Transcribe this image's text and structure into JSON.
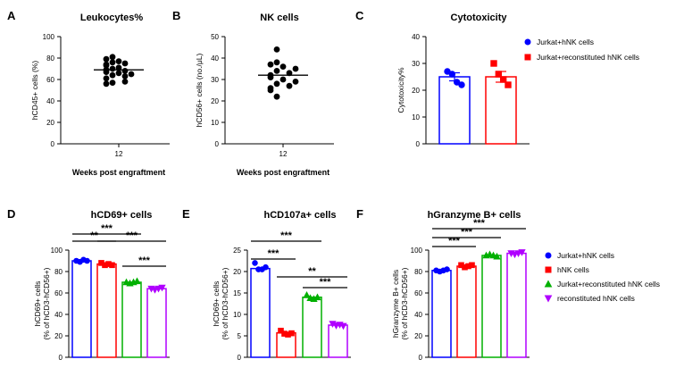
{
  "panels": [
    {
      "id": "A",
      "label": "A",
      "title": "Leukocytes%",
      "ylabel": "hCD45+ cells (%)",
      "xlabel": "Weeks post engraftment",
      "xtick": "12",
      "yticks": [
        0,
        20,
        40,
        60,
        80,
        100
      ],
      "ylim": [
        0,
        100
      ],
      "mean": 69
    },
    {
      "id": "B",
      "label": "B",
      "title": "NK cells",
      "ylabel": "hCD56+ cells (no./μL)",
      "xlabel": "Weeks post engraftment",
      "xtick": "12",
      "yticks": [
        0,
        10,
        20,
        30,
        40,
        50
      ],
      "ylim": [
        0,
        50
      ],
      "mean": 32
    },
    {
      "id": "C",
      "label": "C",
      "title": "Cytotoxicity",
      "ylabel": "Cytotoxicity%",
      "yticks": [
        0,
        10,
        20,
        30,
        40
      ],
      "ylim": [
        0,
        40
      ]
    },
    {
      "id": "D",
      "label": "D",
      "title": "hCD69+ cells",
      "ylabel": "hCD69+ cells",
      "ylabel2": "(% of hCD3-hCD56+)",
      "yticks": [
        0,
        20,
        40,
        60,
        80,
        100
      ],
      "ylim": [
        0,
        100
      ]
    },
    {
      "id": "E",
      "label": "E",
      "title": "hCD107a+ cells",
      "ylabel": "hCD69+ cells",
      "ylabel2": "(% of hCD3-hCD56+)",
      "yticks": [
        0,
        5,
        10,
        15,
        20,
        25
      ],
      "ylim": [
        0,
        25
      ]
    },
    {
      "id": "F",
      "label": "F",
      "title": "hGranzyme B+ cells",
      "ylabel": "hGranzyme B+ cells",
      "ylabel2": "(% of hCD3-hCD56+)",
      "yticks": [
        0,
        20,
        40,
        60,
        80,
        100
      ],
      "ylim": [
        0,
        100
      ]
    }
  ],
  "legend_C": [
    {
      "name": "Jurkat+hNK cells",
      "color": "#0000ff",
      "marker": "circle"
    },
    {
      "name": "Jurkat+reconstituted hNK cells",
      "color": "#ff0000",
      "marker": "square"
    }
  ],
  "legend_F": [
    {
      "name": "Jurkat+hNK cells",
      "color": "#0000ff",
      "marker": "circle"
    },
    {
      "name": "hNK cells",
      "color": "#ff0000",
      "marker": "square"
    },
    {
      "name": "Jurkat+reconstituted hNK cells",
      "color": "#00b000",
      "marker": "triangle"
    },
    {
      "name": "reconstituted hNK cells",
      "color": "#b000ff",
      "marker": "invtriangle"
    }
  ],
  "chart_data": [
    {
      "type": "scatter",
      "panel": "A",
      "title": "Leukocytes%",
      "xlabel": "Weeks post engraftment",
      "ylabel": "hCD45+ cells (%)",
      "categories": [
        "12"
      ],
      "ylim": [
        0,
        100
      ],
      "points": [
        79,
        81,
        76,
        77,
        73,
        75,
        71,
        74,
        70,
        67,
        68,
        69,
        66,
        64,
        65,
        63,
        57,
        58,
        56,
        61
      ],
      "mean": 69
    },
    {
      "type": "scatter",
      "panel": "B",
      "title": "NK cells",
      "xlabel": "Weeks post engraftment",
      "ylabel": "hCD56+ cells (no./μL)",
      "categories": [
        "12"
      ],
      "ylim": [
        0,
        50
      ],
      "points": [
        44,
        38,
        37,
        36,
        35,
        34,
        33,
        32,
        31,
        30,
        29,
        28,
        27,
        26,
        25,
        22
      ],
      "mean": 32
    },
    {
      "type": "bar",
      "panel": "C",
      "title": "Cytotoxicity",
      "ylabel": "Cytotoxicity%",
      "ylim": [
        0,
        40
      ],
      "series": [
        {
          "name": "Jurkat+hNK cells",
          "color": "#0000ff",
          "value": 25,
          "sem": 1.5,
          "points": [
            27,
            26,
            23,
            22
          ]
        },
        {
          "name": "Jurkat+reconstituted hNK cells",
          "color": "#ff0000",
          "value": 25,
          "sem": 2,
          "points": [
            30,
            26,
            24,
            22
          ]
        }
      ]
    },
    {
      "type": "bar",
      "panel": "D",
      "title": "hCD69+ cells",
      "ylabel": "hCD69+ cells (% of hCD3-hCD56+)",
      "ylim": [
        0,
        100
      ],
      "series": [
        {
          "name": "Jurkat+hNK cells",
          "color": "#0000ff",
          "value": 90,
          "points": [
            90,
            89,
            91,
            90
          ]
        },
        {
          "name": "hNK cells",
          "color": "#ff0000",
          "value": 87,
          "points": [
            88,
            86,
            87,
            86
          ]
        },
        {
          "name": "Jurkat+reconstituted hNK cells",
          "color": "#00b000",
          "value": 70,
          "points": [
            70,
            69,
            70,
            71
          ]
        },
        {
          "name": "reconstituted hNK cells",
          "color": "#b000ff",
          "value": 64,
          "points": [
            64,
            63,
            64,
            65
          ]
        }
      ],
      "significance": [
        {
          "from": 0,
          "to": 1,
          "label": "**"
        },
        {
          "from": 0,
          "to": 2,
          "label": "***"
        },
        {
          "from": 1,
          "to": 3,
          "label": "***"
        },
        {
          "from": 2,
          "to": 3,
          "label": "***"
        }
      ]
    },
    {
      "type": "bar",
      "panel": "E",
      "title": "hCD107a+ cells",
      "ylabel": "hCD69+ cells (% of hCD3-hCD56+)",
      "ylim": [
        0,
        25
      ],
      "series": [
        {
          "name": "Jurkat+hNK cells",
          "color": "#0000ff",
          "value": 20.7,
          "points": [
            22,
            20.5,
            20.5,
            21
          ]
        },
        {
          "name": "hNK cells",
          "color": "#ff0000",
          "value": 5.7,
          "points": [
            6.2,
            5.5,
            5.3,
            5.6
          ]
        },
        {
          "name": "Jurkat+reconstituted hNK cells",
          "color": "#00b000",
          "value": 14,
          "points": [
            14.5,
            13.8,
            13.6,
            14
          ]
        },
        {
          "name": "reconstituted hNK cells",
          "color": "#b000ff",
          "value": 7.5,
          "points": [
            7.8,
            7.4,
            7.6,
            7.3
          ]
        }
      ],
      "significance": [
        {
          "from": 0,
          "to": 1,
          "label": "***"
        },
        {
          "from": 0,
          "to": 2,
          "label": "***"
        },
        {
          "from": 1,
          "to": 3,
          "label": "**"
        },
        {
          "from": 2,
          "to": 3,
          "label": "***"
        }
      ]
    },
    {
      "type": "bar",
      "panel": "F",
      "title": "hGranzyme B+ cells",
      "ylabel": "hGranzyme B+ cells (% of hCD3-hCD56+)",
      "ylim": [
        0,
        100
      ],
      "series": [
        {
          "name": "Jurkat+hNK cells",
          "color": "#0000ff",
          "value": 81,
          "points": [
            81,
            80,
            81,
            82
          ]
        },
        {
          "name": "hNK cells",
          "color": "#ff0000",
          "value": 85,
          "points": [
            86,
            84,
            85,
            86
          ]
        },
        {
          "name": "Jurkat+reconstituted hNK cells",
          "color": "#00b000",
          "value": 95,
          "points": [
            95,
            96,
            95,
            94
          ]
        },
        {
          "name": "reconstituted hNK cells",
          "color": "#b000ff",
          "value": 97,
          "points": [
            97,
            96,
            97,
            98
          ]
        }
      ],
      "significance": [
        {
          "from": 0,
          "to": 1,
          "label": "***"
        },
        {
          "from": 0,
          "to": 2,
          "label": "***"
        },
        {
          "from": 0,
          "to": 3,
          "label": "***"
        }
      ]
    }
  ]
}
